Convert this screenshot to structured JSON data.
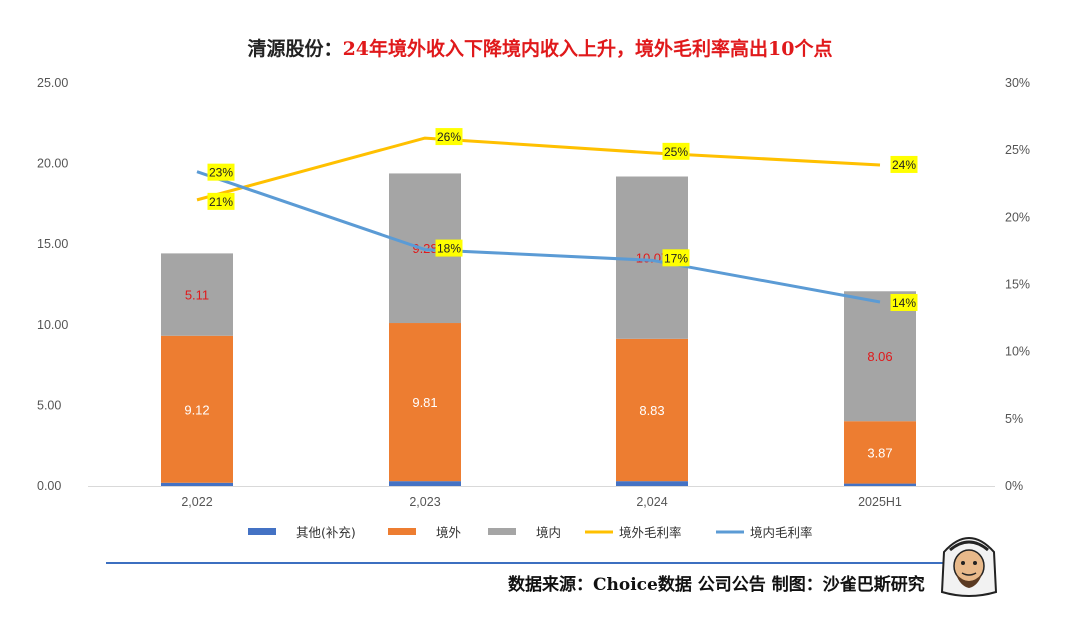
{
  "title_part1": "清源股份：",
  "title_part2": "24年境外收入下降境内收入上升，境外毛利率高出10个点",
  "footer": "数据来源：Choice数据  公司公告  制图：沙雀巴斯研究",
  "chart_data": {
    "type": "bar",
    "stacked": true,
    "categories": [
      "2,022",
      "2,023",
      "2,024",
      "2025H1"
    ],
    "series": [
      {
        "name": "其他(补充)",
        "type": "bar",
        "axis": "left",
        "color": "#4472c4",
        "values": [
          0.2,
          0.3,
          0.3,
          0.15
        ]
      },
      {
        "name": "境外",
        "type": "bar",
        "axis": "left",
        "color": "#ed7d31",
        "values": [
          9.12,
          9.81,
          8.83,
          3.87
        ]
      },
      {
        "name": "境内",
        "type": "bar",
        "axis": "left",
        "color": "#a5a5a5",
        "values": [
          5.11,
          9.28,
          10.07,
          8.06
        ]
      },
      {
        "name": "境外毛利率",
        "type": "line",
        "axis": "right",
        "color": "#ffc000",
        "values": [
          21.3,
          25.9,
          24.8,
          23.9
        ],
        "labels": [
          "21%",
          "26%",
          "25%",
          "24%"
        ]
      },
      {
        "name": "境内毛利率",
        "type": "line",
        "axis": "right",
        "color": "#5b9bd5",
        "values": [
          23.4,
          17.6,
          16.8,
          13.7
        ],
        "labels": [
          "23%",
          "18%",
          "17%",
          "14%"
        ]
      }
    ],
    "bar_value_labels": [
      {
        "series": "境外",
        "labels": [
          "9.12",
          "9.81",
          "8.83",
          "3.87"
        ],
        "color": "#ffffff"
      },
      {
        "series": "境内",
        "labels": [
          "5.11",
          "9.28",
          "10.07",
          "8.06"
        ],
        "color": "#e0191b"
      }
    ],
    "y_left": {
      "min": 0,
      "max": 25,
      "ticks": [
        "0.00",
        "5.00",
        "10.00",
        "15.00",
        "20.00",
        "25.00"
      ]
    },
    "y_right": {
      "min": 0,
      "max": 30,
      "ticks": [
        "0%",
        "5%",
        "10%",
        "15%",
        "20%",
        "25%",
        "30%"
      ]
    },
    "legend_position": "bottom",
    "grid": false
  }
}
